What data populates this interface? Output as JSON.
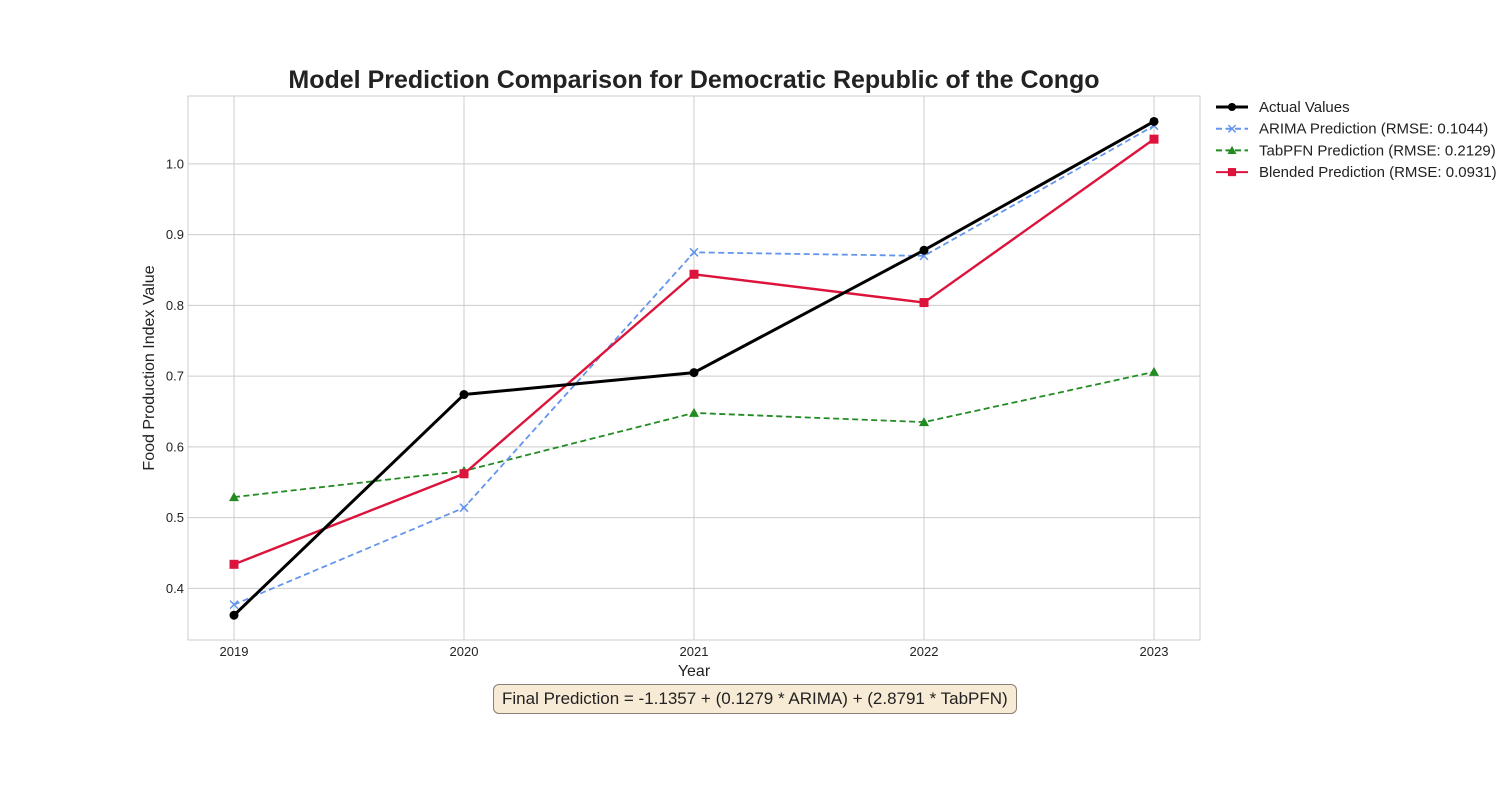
{
  "chart_data": {
    "type": "line",
    "title": "Model Prediction Comparison for Democratic Republic of the Congo",
    "xlabel": "Year",
    "ylabel": "Food Production Index Value",
    "x": [
      2019,
      2020,
      2021,
      2022,
      2023
    ],
    "x_tick_labels": [
      "2019",
      "2020",
      "2021",
      "2022",
      "2023"
    ],
    "ylim": [
      0.327,
      1.096
    ],
    "y_ticks": [
      0.4,
      0.5,
      0.6,
      0.7,
      0.8,
      0.9,
      1.0
    ],
    "y_tick_labels": [
      "0.4",
      "0.5",
      "0.6",
      "0.7",
      "0.8",
      "0.9",
      "1.0"
    ],
    "grid": true,
    "legend_position": "outside-top-right",
    "series": [
      {
        "name": "Actual Values",
        "values": [
          0.362,
          0.674,
          0.705,
          0.878,
          1.06
        ],
        "color": "#000000",
        "style": "solid",
        "marker": "circle"
      },
      {
        "name": "ARIMA Prediction (RMSE: 0.1044)",
        "values": [
          0.377,
          0.514,
          0.875,
          0.87,
          1.054
        ],
        "color": "#6495ed",
        "style": "dashed",
        "marker": "x"
      },
      {
        "name": "TabPFN Prediction (RMSE: 0.2129)",
        "values": [
          0.529,
          0.566,
          0.648,
          0.635,
          0.706
        ],
        "color": "#228b22",
        "style": "dashed",
        "marker": "triangle"
      },
      {
        "name": "Blended Prediction (RMSE: 0.0931)",
        "values": [
          0.434,
          0.562,
          0.844,
          0.804,
          1.035
        ],
        "color": "#dc143c",
        "style": "solid",
        "marker": "square"
      }
    ],
    "annotation": "Final Prediction = -1.1357 + (0.1279 * ARIMA) + (2.8791 * TabPFN)"
  }
}
